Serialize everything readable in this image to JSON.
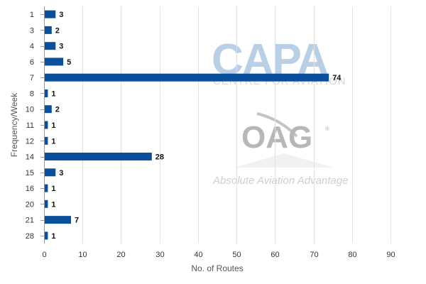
{
  "chart_data": {
    "type": "bar",
    "orientation": "horizontal",
    "title": "",
    "xlabel": "No. of Routes",
    "ylabel": "Frequency/Week",
    "categories": [
      "1",
      "3",
      "4",
      "6",
      "7",
      "8",
      "10",
      "11",
      "12",
      "14",
      "15",
      "16",
      "20",
      "21",
      "28"
    ],
    "values": [
      3,
      2,
      3,
      5,
      74,
      1,
      2,
      1,
      1,
      28,
      3,
      1,
      1,
      7,
      1
    ],
    "xlim": [
      0,
      90
    ],
    "xticks": [
      0,
      10,
      20,
      30,
      40,
      50,
      60,
      70,
      80,
      90
    ],
    "xtick_labels": [
      "0",
      "10",
      "20",
      "30",
      "40",
      "50",
      "60",
      "70",
      "80",
      "90"
    ],
    "grid": "vertical",
    "legend": "none",
    "bar_color": "#0a4f9c"
  },
  "watermarks": {
    "capa": {
      "logo_text": "CAPA",
      "subtitle": "CENTRE FOR AVIATION"
    },
    "oag": {
      "logo_text": "OAG",
      "registered_mark": "®",
      "tagline": "Absolute Aviation Advantage"
    }
  }
}
